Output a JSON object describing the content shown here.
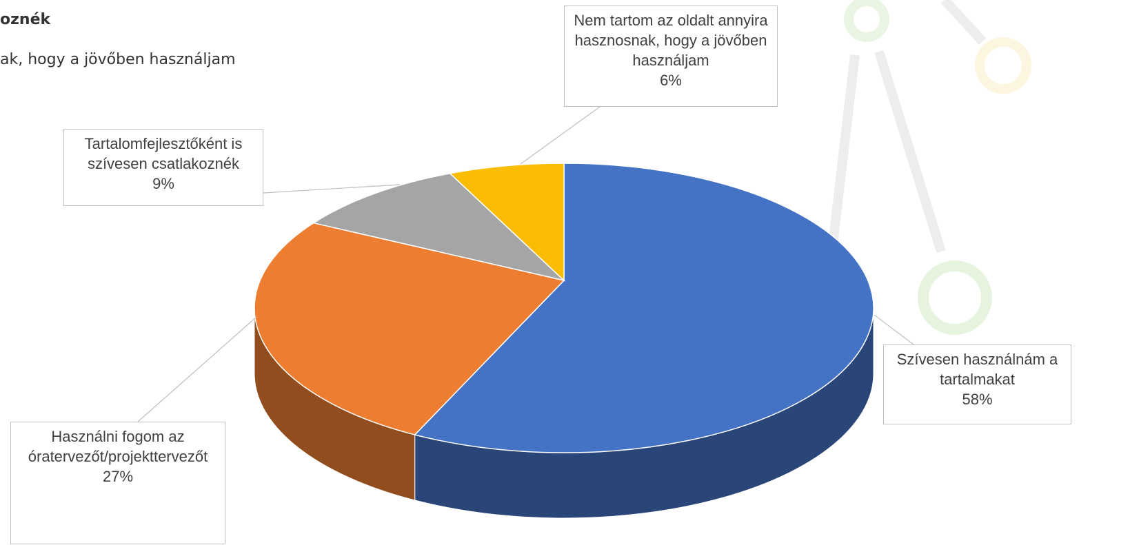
{
  "header": {
    "line1": "oznék",
    "line2": "ak, hogy a jövőben használjam"
  },
  "chart_data": {
    "type": "pie3d",
    "categories": [
      "Szívesen használnám a tartalmakat",
      "Használni fogom az óratervezőt/projekttervezőt",
      "Tartalomfejlesztőként is szívesen csatlakoznék",
      "Nem tartom az oldalt annyira hasznosnak, hogy a jövőben használjam"
    ],
    "values": [
      58,
      27,
      9,
      6
    ],
    "value_labels": [
      "58%",
      "27%",
      "9%",
      "6%"
    ],
    "colors": [
      "#4472c4",
      "#ed7d31",
      "#a5a5a5",
      "#fbbc04"
    ]
  }
}
